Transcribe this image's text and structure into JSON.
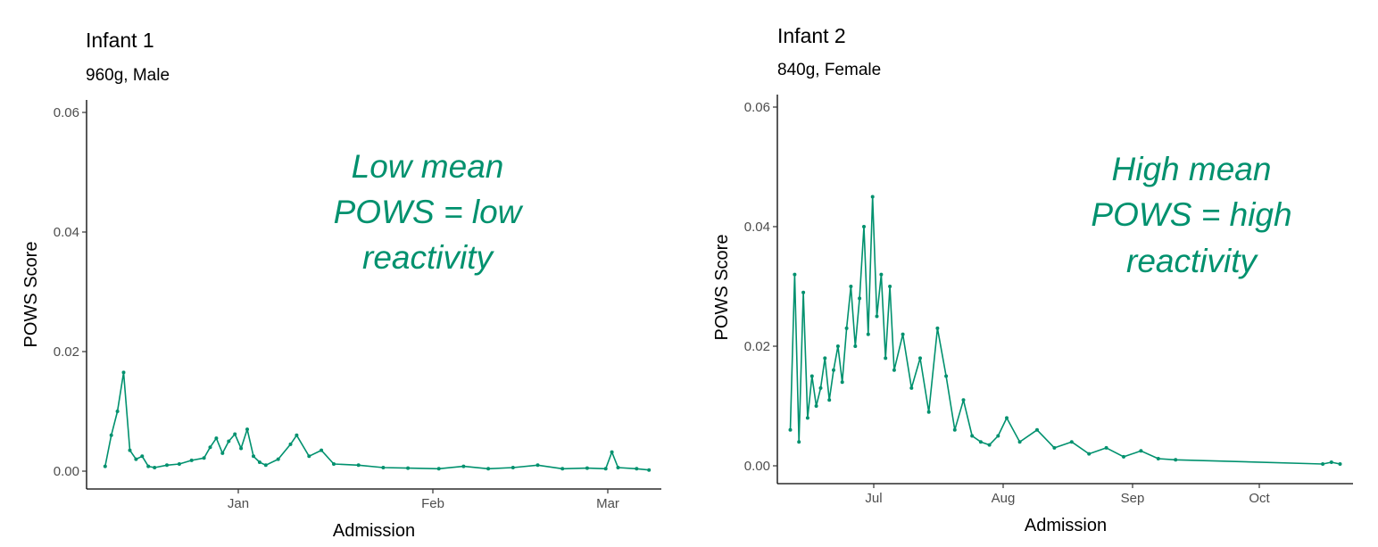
{
  "accent_color": "#00916e",
  "chart_data": [
    {
      "type": "line",
      "title": "Infant 1",
      "subtitle": "960g, Male",
      "xlabel": "Admission",
      "ylabel": "POWS Score",
      "ylim": [
        0,
        0.06
      ],
      "yticks": [
        "0.00",
        "0.02",
        "0.04",
        "0.06"
      ],
      "xticks": [
        "Jan",
        "Feb",
        "Mar"
      ],
      "xlim": [
        "2018-12-07",
        "2019-03-10"
      ],
      "grid": false,
      "annotation": [
        "Low mean",
        "POWS = low",
        "reactivity"
      ],
      "series": [
        {
          "x": [
            "2018-12-10",
            "2018-12-11",
            "2018-12-12",
            "2018-12-13",
            "2018-12-14",
            "2018-12-15",
            "2018-12-16",
            "2018-12-17",
            "2018-12-18",
            "2018-12-20",
            "2018-12-22",
            "2018-12-24",
            "2018-12-26",
            "2018-12-27",
            "2018-12-28",
            "2018-12-29",
            "2018-12-30",
            "2018-12-31",
            "2019-01-01",
            "2019-01-02",
            "2019-01-03",
            "2019-01-04",
            "2019-01-05",
            "2019-01-07",
            "2019-01-09",
            "2019-01-10",
            "2019-01-12",
            "2019-01-14",
            "2019-01-16",
            "2019-01-20",
            "2019-01-24",
            "2019-01-28",
            "2019-02-02",
            "2019-02-06",
            "2019-02-10",
            "2019-02-14",
            "2019-02-18",
            "2019-02-22",
            "2019-02-26",
            "2019-03-01",
            "2019-03-02",
            "2019-03-03",
            "2019-03-06",
            "2019-03-08"
          ],
          "y": [
            0.0008,
            0.006,
            0.01,
            0.0165,
            0.0035,
            0.002,
            0.0025,
            0.0008,
            0.0006,
            0.001,
            0.0012,
            0.0018,
            0.0022,
            0.004,
            0.0055,
            0.003,
            0.005,
            0.0062,
            0.0038,
            0.007,
            0.0025,
            0.0015,
            0.001,
            0.002,
            0.0045,
            0.006,
            0.0025,
            0.0035,
            0.0012,
            0.001,
            0.0006,
            0.0005,
            0.0004,
            0.0008,
            0.0004,
            0.0006,
            0.001,
            0.0004,
            0.0005,
            0.0004,
            0.0032,
            0.0006,
            0.0004,
            0.0002
          ]
        }
      ]
    },
    {
      "type": "line",
      "title": "Infant 2",
      "subtitle": "840g, Female",
      "xlabel": "Admission",
      "ylabel": "POWS Score",
      "ylim": [
        0,
        0.06
      ],
      "yticks": [
        "0.00",
        "0.02",
        "0.04",
        "0.06"
      ],
      "xticks": [
        "Jul",
        "Aug",
        "Sep",
        "Oct"
      ],
      "xlim": [
        "2018-06-11",
        "2018-10-22"
      ],
      "grid": false,
      "annotation": [
        "High mean",
        "POWS = high",
        "reactivity"
      ],
      "series": [
        {
          "x": [
            "2018-06-14",
            "2018-06-15",
            "2018-06-16",
            "2018-06-17",
            "2018-06-18",
            "2018-06-19",
            "2018-06-20",
            "2018-06-21",
            "2018-06-22",
            "2018-06-23",
            "2018-06-24",
            "2018-06-25",
            "2018-06-26",
            "2018-06-27",
            "2018-06-28",
            "2018-06-29",
            "2018-06-30",
            "2018-07-01",
            "2018-07-02",
            "2018-07-03",
            "2018-07-04",
            "2018-07-05",
            "2018-07-06",
            "2018-07-07",
            "2018-07-08",
            "2018-07-10",
            "2018-07-12",
            "2018-07-14",
            "2018-07-16",
            "2018-07-18",
            "2018-07-20",
            "2018-07-22",
            "2018-07-24",
            "2018-07-26",
            "2018-07-28",
            "2018-07-30",
            "2018-08-01",
            "2018-08-03",
            "2018-08-06",
            "2018-08-10",
            "2018-08-14",
            "2018-08-18",
            "2018-08-22",
            "2018-08-26",
            "2018-08-30",
            "2018-09-03",
            "2018-09-07",
            "2018-09-11",
            "2018-10-15",
            "2018-10-17",
            "2018-10-19"
          ],
          "y": [
            0.006,
            0.032,
            0.004,
            0.029,
            0.008,
            0.015,
            0.01,
            0.013,
            0.018,
            0.011,
            0.016,
            0.02,
            0.014,
            0.023,
            0.03,
            0.02,
            0.028,
            0.04,
            0.022,
            0.045,
            0.025,
            0.032,
            0.018,
            0.03,
            0.016,
            0.022,
            0.013,
            0.018,
            0.009,
            0.023,
            0.015,
            0.006,
            0.011,
            0.005,
            0.004,
            0.0035,
            0.005,
            0.008,
            0.004,
            0.006,
            0.003,
            0.004,
            0.002,
            0.003,
            0.0015,
            0.0025,
            0.0012,
            0.001,
            0.0003,
            0.0006,
            0.0003
          ]
        }
      ]
    }
  ]
}
